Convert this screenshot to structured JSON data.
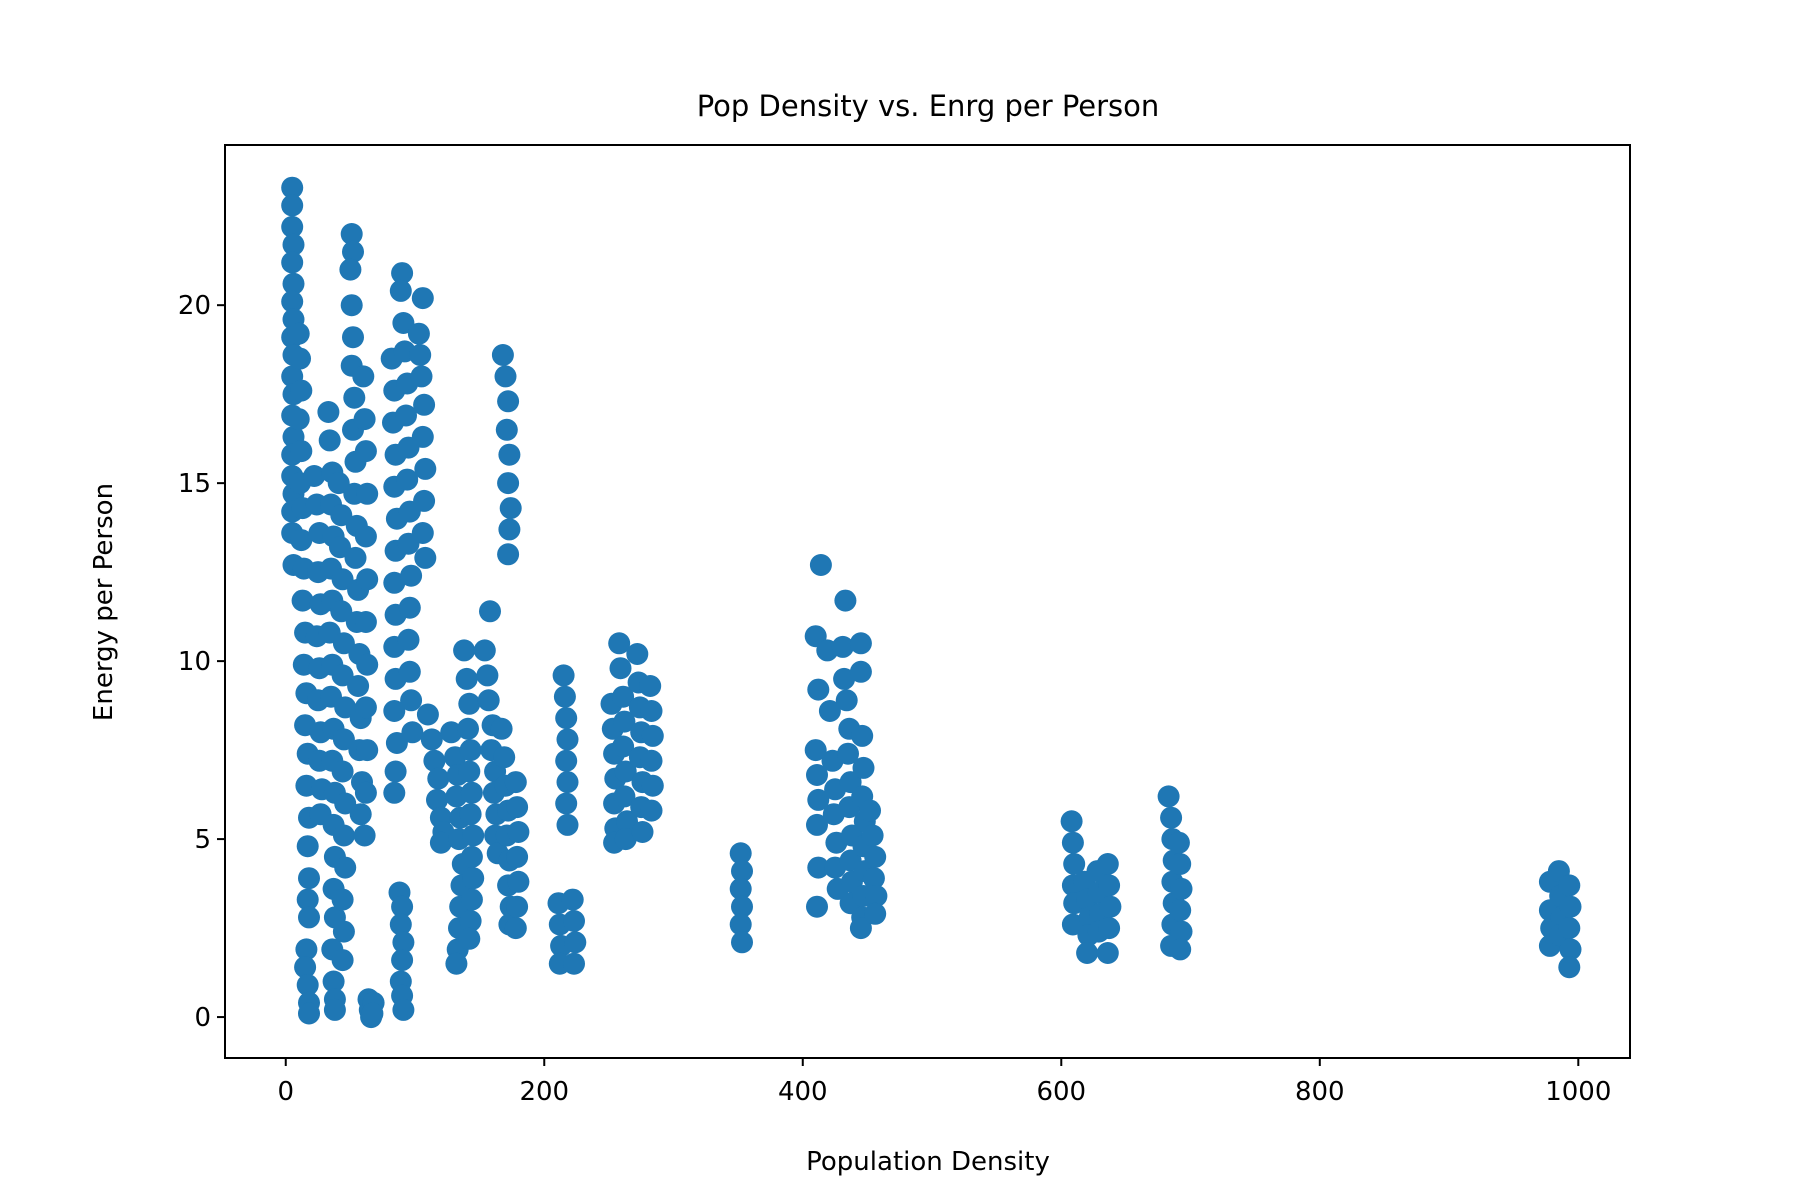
{
  "chart_data": {
    "type": "scatter",
    "title": "Pop Density vs. Enrg per Person",
    "xlabel": "Population Density",
    "ylabel": "Energy per Person",
    "xlim": [
      -47,
      1040
    ],
    "ylim": [
      -1.15,
      24.5
    ],
    "xticks": [
      0,
      200,
      400,
      600,
      800,
      1000
    ],
    "yticks": [
      0,
      5,
      10,
      15,
      20
    ],
    "grid": false,
    "legend": "none",
    "color": "#1f77b4",
    "points": [
      [
        5,
        23.3
      ],
      [
        5,
        22.8
      ],
      [
        5,
        22.2
      ],
      [
        6,
        21.7
      ],
      [
        5,
        21.2
      ],
      [
        6,
        20.6
      ],
      [
        5,
        20.1
      ],
      [
        6,
        19.6
      ],
      [
        5,
        19.1
      ],
      [
        6,
        18.6
      ],
      [
        5,
        18.0
      ],
      [
        6,
        17.5
      ],
      [
        5,
        16.9
      ],
      [
        6,
        16.3
      ],
      [
        5,
        15.8
      ],
      [
        5,
        15.2
      ],
      [
        6,
        14.7
      ],
      [
        5,
        14.2
      ],
      [
        5,
        13.6
      ],
      [
        6,
        12.7
      ],
      [
        10,
        19.2
      ],
      [
        11,
        18.5
      ],
      [
        12,
        17.6
      ],
      [
        10,
        16.8
      ],
      [
        12,
        15.9
      ],
      [
        11,
        15.0
      ],
      [
        13,
        14.3
      ],
      [
        12,
        13.4
      ],
      [
        14,
        12.6
      ],
      [
        13,
        11.7
      ],
      [
        15,
        10.8
      ],
      [
        14,
        9.9
      ],
      [
        16,
        9.1
      ],
      [
        15,
        8.2
      ],
      [
        17,
        7.4
      ],
      [
        16,
        6.5
      ],
      [
        18,
        5.6
      ],
      [
        17,
        4.8
      ],
      [
        18,
        3.9
      ],
      [
        17,
        3.3
      ],
      [
        18,
        2.8
      ],
      [
        16,
        1.9
      ],
      [
        15,
        1.4
      ],
      [
        17,
        0.9
      ],
      [
        18,
        0.4
      ],
      [
        18,
        0.1
      ],
      [
        22,
        15.2
      ],
      [
        24,
        14.4
      ],
      [
        26,
        13.6
      ],
      [
        25,
        12.5
      ],
      [
        27,
        11.6
      ],
      [
        24,
        10.7
      ],
      [
        26,
        9.8
      ],
      [
        25,
        8.9
      ],
      [
        27,
        8.0
      ],
      [
        26,
        7.2
      ],
      [
        28,
        6.4
      ],
      [
        27,
        5.7
      ],
      [
        33,
        17.0
      ],
      [
        34,
        16.2
      ],
      [
        36,
        15.3
      ],
      [
        35,
        14.4
      ],
      [
        37,
        13.5
      ],
      [
        35,
        12.6
      ],
      [
        36,
        11.7
      ],
      [
        34,
        10.8
      ],
      [
        36,
        9.9
      ],
      [
        35,
        9.0
      ],
      [
        37,
        8.1
      ],
      [
        36,
        7.2
      ],
      [
        38,
        6.3
      ],
      [
        37,
        5.4
      ],
      [
        38,
        4.5
      ],
      [
        37,
        3.6
      ],
      [
        38,
        2.8
      ],
      [
        36,
        1.9
      ],
      [
        37,
        1.0
      ],
      [
        38,
        0.5
      ],
      [
        38,
        0.2
      ],
      [
        41,
        15.0
      ],
      [
        43,
        14.1
      ],
      [
        42,
        13.2
      ],
      [
        44,
        12.3
      ],
      [
        43,
        11.4
      ],
      [
        45,
        10.5
      ],
      [
        44,
        9.6
      ],
      [
        46,
        8.7
      ],
      [
        45,
        7.8
      ],
      [
        44,
        6.9
      ],
      [
        46,
        6.0
      ],
      [
        45,
        5.1
      ],
      [
        46,
        4.2
      ],
      [
        44,
        3.3
      ],
      [
        45,
        2.4
      ],
      [
        44,
        1.6
      ],
      [
        51,
        22.0
      ],
      [
        52,
        21.5
      ],
      [
        50,
        21.0
      ],
      [
        51,
        20.0
      ],
      [
        52,
        19.1
      ],
      [
        51,
        18.3
      ],
      [
        53,
        17.4
      ],
      [
        52,
        16.5
      ],
      [
        54,
        15.6
      ],
      [
        53,
        14.7
      ],
      [
        55,
        13.8
      ],
      [
        54,
        12.9
      ],
      [
        56,
        12.0
      ],
      [
        55,
        11.1
      ],
      [
        57,
        10.2
      ],
      [
        56,
        9.3
      ],
      [
        58,
        8.4
      ],
      [
        57,
        7.5
      ],
      [
        59,
        6.6
      ],
      [
        58,
        5.7
      ],
      [
        60,
        18.0
      ],
      [
        61,
        16.8
      ],
      [
        62,
        15.9
      ],
      [
        63,
        14.7
      ],
      [
        62,
        13.5
      ],
      [
        63,
        12.3
      ],
      [
        62,
        11.1
      ],
      [
        63,
        9.9
      ],
      [
        62,
        8.7
      ],
      [
        63,
        7.5
      ],
      [
        62,
        6.3
      ],
      [
        61,
        5.1
      ],
      [
        64,
        0.5
      ],
      [
        65,
        0.2
      ],
      [
        66,
        0.0
      ],
      [
        68,
        0.4
      ],
      [
        67,
        0.1
      ],
      [
        82,
        18.5
      ],
      [
        84,
        17.6
      ],
      [
        83,
        16.7
      ],
      [
        85,
        15.8
      ],
      [
        84,
        14.9
      ],
      [
        86,
        14.0
      ],
      [
        85,
        13.1
      ],
      [
        84,
        12.2
      ],
      [
        85,
        11.3
      ],
      [
        84,
        10.4
      ],
      [
        85,
        9.5
      ],
      [
        84,
        8.6
      ],
      [
        86,
        7.7
      ],
      [
        85,
        6.9
      ],
      [
        84,
        6.3
      ],
      [
        88,
        3.5
      ],
      [
        90,
        3.1
      ],
      [
        89,
        2.6
      ],
      [
        91,
        2.1
      ],
      [
        90,
        1.6
      ],
      [
        89,
        1.0
      ],
      [
        90,
        0.6
      ],
      [
        91,
        0.2
      ],
      [
        90,
        20.9
      ],
      [
        89,
        20.4
      ],
      [
        91,
        19.5
      ],
      [
        92,
        18.7
      ],
      [
        94,
        17.8
      ],
      [
        93,
        16.9
      ],
      [
        95,
        16.0
      ],
      [
        94,
        15.1
      ],
      [
        96,
        14.2
      ],
      [
        95,
        13.3
      ],
      [
        97,
        12.4
      ],
      [
        96,
        11.5
      ],
      [
        95,
        10.6
      ],
      [
        96,
        9.7
      ],
      [
        97,
        8.9
      ],
      [
        98,
        8.0
      ],
      [
        103,
        19.2
      ],
      [
        104,
        18.6
      ],
      [
        105,
        18.0
      ],
      [
        107,
        17.2
      ],
      [
        106,
        16.3
      ],
      [
        108,
        15.4
      ],
      [
        107,
        14.5
      ],
      [
        106,
        13.6
      ],
      [
        108,
        12.9
      ],
      [
        106,
        20.2
      ],
      [
        110,
        8.5
      ],
      [
        113,
        7.8
      ],
      [
        115,
        7.2
      ],
      [
        118,
        6.7
      ],
      [
        117,
        6.1
      ],
      [
        120,
        5.6
      ],
      [
        122,
        5.2
      ],
      [
        120,
        4.9
      ],
      [
        128,
        8.0
      ],
      [
        131,
        7.3
      ],
      [
        133,
        6.8
      ],
      [
        132,
        6.2
      ],
      [
        135,
        5.6
      ],
      [
        134,
        5.0
      ],
      [
        137,
        4.3
      ],
      [
        136,
        3.7
      ],
      [
        135,
        3.1
      ],
      [
        134,
        2.5
      ],
      [
        133,
        1.9
      ],
      [
        132,
        1.5
      ],
      [
        138,
        10.3
      ],
      [
        140,
        9.5
      ],
      [
        142,
        8.8
      ],
      [
        141,
        8.1
      ],
      [
        143,
        7.5
      ],
      [
        142,
        6.9
      ],
      [
        144,
        6.3
      ],
      [
        143,
        5.7
      ],
      [
        145,
        5.1
      ],
      [
        144,
        4.5
      ],
      [
        145,
        3.9
      ],
      [
        144,
        3.3
      ],
      [
        143,
        2.7
      ],
      [
        142,
        2.2
      ],
      [
        154,
        10.3
      ],
      [
        156,
        9.6
      ],
      [
        158,
        11.4
      ],
      [
        157,
        8.9
      ],
      [
        160,
        8.2
      ],
      [
        159,
        7.5
      ],
      [
        162,
        6.9
      ],
      [
        161,
        6.3
      ],
      [
        163,
        5.7
      ],
      [
        162,
        5.1
      ],
      [
        164,
        4.6
      ],
      [
        167,
        8.1
      ],
      [
        169,
        7.3
      ],
      [
        170,
        6.5
      ],
      [
        172,
        5.8
      ],
      [
        171,
        5.1
      ],
      [
        173,
        4.4
      ],
      [
        172,
        3.7
      ],
      [
        174,
        3.1
      ],
      [
        173,
        2.6
      ],
      [
        168,
        18.6
      ],
      [
        170,
        18.0
      ],
      [
        172,
        17.3
      ],
      [
        171,
        16.5
      ],
      [
        173,
        15.8
      ],
      [
        172,
        15.0
      ],
      [
        174,
        14.3
      ],
      [
        173,
        13.7
      ],
      [
        172,
        13.0
      ],
      [
        178,
        6.6
      ],
      [
        179,
        5.9
      ],
      [
        180,
        5.2
      ],
      [
        179,
        4.5
      ],
      [
        180,
        3.8
      ],
      [
        179,
        3.1
      ],
      [
        178,
        2.5
      ],
      [
        211,
        3.2
      ],
      [
        212,
        2.6
      ],
      [
        213,
        2.0
      ],
      [
        212,
        1.5
      ],
      [
        215,
        9.6
      ],
      [
        216,
        9.0
      ],
      [
        217,
        8.4
      ],
      [
        218,
        7.8
      ],
      [
        217,
        7.2
      ],
      [
        218,
        6.6
      ],
      [
        217,
        6.0
      ],
      [
        218,
        5.4
      ],
      [
        222,
        3.3
      ],
      [
        223,
        2.7
      ],
      [
        224,
        2.1
      ],
      [
        223,
        1.5
      ],
      [
        252,
        8.8
      ],
      [
        253,
        8.1
      ],
      [
        254,
        7.4
      ],
      [
        255,
        6.7
      ],
      [
        254,
        6.0
      ],
      [
        255,
        5.3
      ],
      [
        254,
        4.9
      ],
      [
        258,
        10.5
      ],
      [
        259,
        9.8
      ],
      [
        261,
        9.0
      ],
      [
        262,
        8.3
      ],
      [
        261,
        7.6
      ],
      [
        263,
        6.9
      ],
      [
        262,
        6.2
      ],
      [
        264,
        5.5
      ],
      [
        263,
        5.0
      ],
      [
        272,
        10.2
      ],
      [
        273,
        9.4
      ],
      [
        274,
        8.7
      ],
      [
        275,
        8.0
      ],
      [
        274,
        7.3
      ],
      [
        276,
        6.6
      ],
      [
        275,
        5.9
      ],
      [
        276,
        5.2
      ],
      [
        282,
        9.3
      ],
      [
        283,
        8.6
      ],
      [
        284,
        7.9
      ],
      [
        283,
        7.2
      ],
      [
        284,
        6.5
      ],
      [
        283,
        5.8
      ],
      [
        352,
        4.6
      ],
      [
        353,
        4.1
      ],
      [
        352,
        3.6
      ],
      [
        353,
        3.1
      ],
      [
        352,
        2.6
      ],
      [
        353,
        2.1
      ],
      [
        410,
        10.7
      ],
      [
        412,
        9.2
      ],
      [
        410,
        7.5
      ],
      [
        411,
        6.8
      ],
      [
        412,
        6.1
      ],
      [
        411,
        5.4
      ],
      [
        412,
        4.2
      ],
      [
        411,
        3.1
      ],
      [
        414,
        12.7
      ],
      [
        419,
        10.3
      ],
      [
        421,
        8.6
      ],
      [
        423,
        7.2
      ],
      [
        425,
        6.4
      ],
      [
        424,
        5.7
      ],
      [
        426,
        4.9
      ],
      [
        425,
        4.2
      ],
      [
        427,
        3.6
      ],
      [
        433,
        11.7
      ],
      [
        431,
        10.4
      ],
      [
        432,
        9.5
      ],
      [
        434,
        8.9
      ],
      [
        436,
        8.1
      ],
      [
        435,
        7.4
      ],
      [
        437,
        6.6
      ],
      [
        436,
        5.9
      ],
      [
        438,
        5.1
      ],
      [
        437,
        4.4
      ],
      [
        438,
        3.8
      ],
      [
        437,
        3.2
      ],
      [
        445,
        10.5
      ],
      [
        445,
        9.7
      ],
      [
        446,
        7.9
      ],
      [
        447,
        7.0
      ],
      [
        446,
        6.2
      ],
      [
        448,
        5.5
      ],
      [
        447,
        4.8
      ],
      [
        448,
        4.1
      ],
      [
        447,
        3.4
      ],
      [
        446,
        2.8
      ],
      [
        445,
        2.5
      ],
      [
        452,
        5.8
      ],
      [
        454,
        5.1
      ],
      [
        456,
        4.5
      ],
      [
        455,
        3.9
      ],
      [
        457,
        3.4
      ],
      [
        456,
        2.9
      ],
      [
        608,
        5.5
      ],
      [
        609,
        4.9
      ],
      [
        610,
        4.3
      ],
      [
        609,
        3.7
      ],
      [
        610,
        3.2
      ],
      [
        609,
        2.6
      ],
      [
        618,
        3.8
      ],
      [
        620,
        3.3
      ],
      [
        622,
        2.8
      ],
      [
        621,
        2.3
      ],
      [
        620,
        1.8
      ],
      [
        628,
        4.1
      ],
      [
        629,
        3.5
      ],
      [
        630,
        2.9
      ],
      [
        629,
        2.4
      ],
      [
        636,
        4.3
      ],
      [
        637,
        3.7
      ],
      [
        638,
        3.1
      ],
      [
        637,
        2.5
      ],
      [
        636,
        1.8
      ],
      [
        683,
        6.2
      ],
      [
        685,
        5.6
      ],
      [
        686,
        5.0
      ],
      [
        687,
        4.4
      ],
      [
        686,
        3.8
      ],
      [
        687,
        3.2
      ],
      [
        686,
        2.6
      ],
      [
        685,
        2.0
      ],
      [
        691,
        4.9
      ],
      [
        692,
        4.3
      ],
      [
        693,
        3.6
      ],
      [
        692,
        3.0
      ],
      [
        693,
        2.4
      ],
      [
        692,
        1.9
      ],
      [
        978,
        3.8
      ],
      [
        978,
        3.0
      ],
      [
        979,
        2.5
      ],
      [
        978,
        2.0
      ],
      [
        985,
        4.1
      ],
      [
        986,
        3.4
      ],
      [
        987,
        2.8
      ],
      [
        986,
        2.3
      ],
      [
        993,
        3.7
      ],
      [
        994,
        3.1
      ],
      [
        993,
        2.5
      ],
      [
        994,
        1.9
      ],
      [
        993,
        1.4
      ]
    ]
  }
}
